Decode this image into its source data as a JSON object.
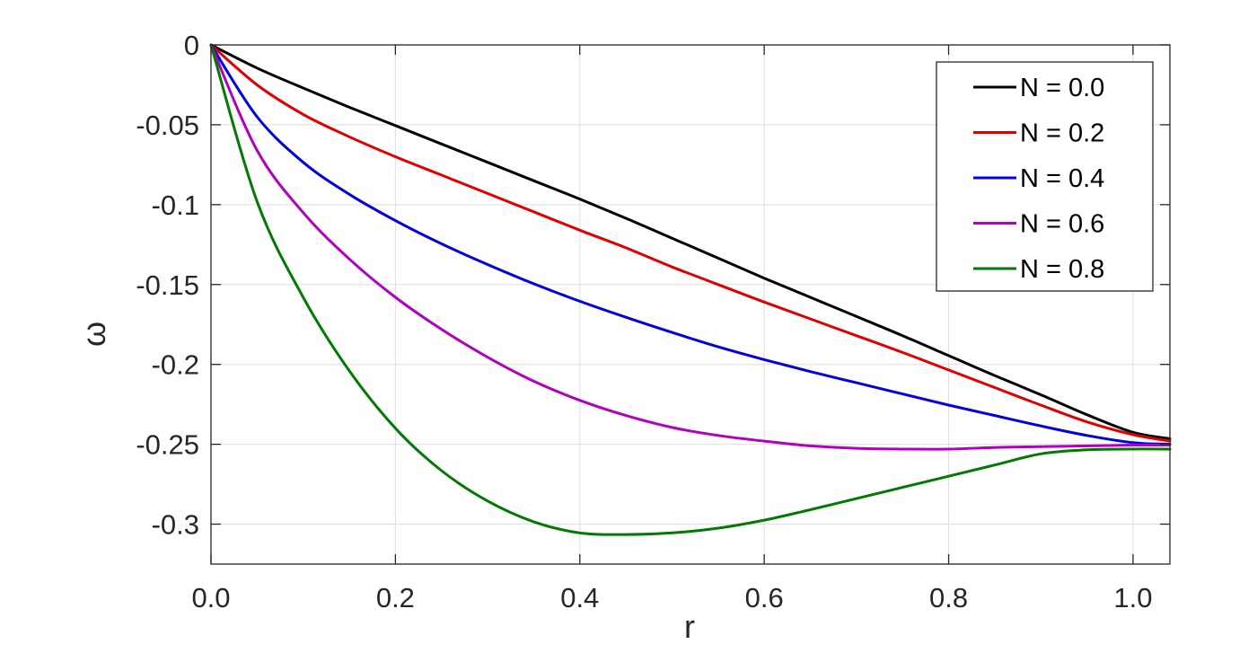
{
  "chart_data": {
    "type": "line",
    "xlabel": "r",
    "ylabel": "ω",
    "xlim": [
      0,
      1.04
    ],
    "ylim": [
      -0.325,
      0
    ],
    "grid": true,
    "legend_position": "top-right",
    "x_ticks": [
      0,
      0.2,
      0.4,
      0.6,
      0.8,
      1.0
    ],
    "x_tick_labels": [
      "0.0",
      "0.2",
      "0.4",
      "0.6",
      "0.8",
      "1.0"
    ],
    "y_ticks": [
      0,
      -0.05,
      -0.1,
      -0.15,
      -0.2,
      -0.25,
      -0.3
    ],
    "y_tick_labels": [
      "0",
      "-0.05",
      "-0.1",
      "-0.15",
      "-0.2",
      "-0.25",
      "-0.3"
    ],
    "x": [
      0,
      0.05,
      0.1,
      0.15,
      0.2,
      0.25,
      0.3,
      0.35,
      0.4,
      0.45,
      0.5,
      0.55,
      0.6,
      0.65,
      0.7,
      0.75,
      0.8,
      0.85,
      0.9,
      0.95,
      1.0,
      1.04
    ],
    "series": [
      {
        "name": "N = 0.0",
        "color": "#000000",
        "values": [
          0,
          -0.0145,
          -0.027,
          -0.039,
          -0.0505,
          -0.062,
          -0.0735,
          -0.085,
          -0.0965,
          -0.1085,
          -0.121,
          -0.1335,
          -0.146,
          -0.158,
          -0.17,
          -0.182,
          -0.1945,
          -0.207,
          -0.219,
          -0.2315,
          -0.2425,
          -0.2465
        ]
      },
      {
        "name": "N = 0.2",
        "color": "#e00000",
        "values": [
          0,
          -0.025,
          -0.0435,
          -0.0575,
          -0.07,
          -0.0815,
          -0.093,
          -0.1045,
          -0.116,
          -0.127,
          -0.139,
          -0.15,
          -0.161,
          -0.1715,
          -0.182,
          -0.1925,
          -0.2035,
          -0.2145,
          -0.2255,
          -0.236,
          -0.244,
          -0.248
        ]
      },
      {
        "name": "N = 0.4",
        "color": "#0000e0",
        "values": [
          0,
          -0.045,
          -0.0735,
          -0.0935,
          -0.11,
          -0.1245,
          -0.1375,
          -0.1495,
          -0.1605,
          -0.1705,
          -0.18,
          -0.189,
          -0.197,
          -0.2045,
          -0.2115,
          -0.2185,
          -0.2255,
          -0.232,
          -0.2385,
          -0.2445,
          -0.249,
          -0.25
        ]
      },
      {
        "name": "N = 0.6",
        "color": "#b000c0",
        "values": [
          0,
          -0.066,
          -0.105,
          -0.134,
          -0.158,
          -0.178,
          -0.1955,
          -0.2105,
          -0.2225,
          -0.232,
          -0.2395,
          -0.2445,
          -0.248,
          -0.251,
          -0.2525,
          -0.253,
          -0.253,
          -0.252,
          -0.2515,
          -0.251,
          -0.2505,
          -0.2505
        ]
      },
      {
        "name": "N = 0.8",
        "color": "#007a00",
        "values": [
          0,
          -0.098,
          -0.158,
          -0.204,
          -0.24,
          -0.2665,
          -0.2855,
          -0.2985,
          -0.3055,
          -0.3065,
          -0.3055,
          -0.3025,
          -0.2975,
          -0.291,
          -0.284,
          -0.277,
          -0.27,
          -0.263,
          -0.256,
          -0.2535,
          -0.253,
          -0.253
        ]
      }
    ]
  }
}
